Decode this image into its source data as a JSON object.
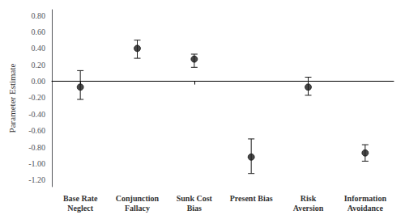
{
  "chart_data": {
    "type": "scatter",
    "categories": [
      "Base Rate\nNeglect",
      "Conjunction\nFallacy",
      "Sunk Cost\nBias",
      "Present Bias",
      "Risk\nAversion",
      "Information\nAvoidance"
    ],
    "values": [
      -0.07,
      0.4,
      0.27,
      -0.92,
      -0.07,
      -0.87
    ],
    "ci_lower": [
      -0.22,
      0.28,
      0.17,
      -1.12,
      -0.17,
      -0.97
    ],
    "ci_upper": [
      0.13,
      0.5,
      0.33,
      -0.7,
      0.05,
      -0.77
    ],
    "color": "#1a1a1a",
    "ylabel": "Parameter Estimate",
    "ylim": [
      -1.28,
      0.87
    ],
    "yticks": [
      {
        "value": -1.2,
        "label": "-1.20"
      },
      {
        "value": -1.0,
        "label": "-1.00"
      },
      {
        "value": -0.8,
        "label": "-0.80"
      },
      {
        "value": -0.6,
        "label": "-0.60"
      },
      {
        "value": -0.4,
        "label": "-0.40"
      },
      {
        "value": -0.2,
        "label": "-0.20"
      },
      {
        "value": 0,
        "label": "0.00"
      },
      {
        "value": 0.2,
        "label": "0.20"
      },
      {
        "value": 0.4,
        "label": "0.40"
      },
      {
        "value": 0.6,
        "label": "0.60"
      },
      {
        "value": 0.8,
        "label": "0.80"
      }
    ],
    "grid": false
  }
}
